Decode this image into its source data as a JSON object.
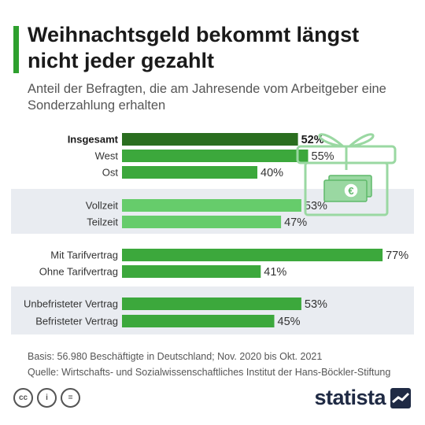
{
  "title": "Weihnachtsgeld bekommt längst nicht jeder gezahlt",
  "subtitle": "Anteil der Befragten, die am Jahresende vom Arbeitgeber eine Sonderzahlung erhalten",
  "colors": {
    "accent": "#2ea02e",
    "dark_green": "#2a6e1f",
    "green": "#3ca83c",
    "light_green": "#66cc6b",
    "band": "#e9ecf1",
    "gift": "#9ad8a2"
  },
  "chart_data": {
    "type": "bar",
    "orientation": "horizontal",
    "unit": "%",
    "categories": [
      "Insgesamt",
      "West",
      "Ost",
      "Vollzeit",
      "Teilzeit",
      "Mit Tarifvertrag",
      "Ohne Tarifvertrag",
      "Unbefristeter Vertrag",
      "Befristeter Vertrag"
    ],
    "values": [
      52,
      55,
      40,
      53,
      47,
      77,
      41,
      53,
      45
    ],
    "value_labels": [
      "52%",
      "55%",
      "40%",
      "53%",
      "47%",
      "77%",
      "41%",
      "53%",
      "45%"
    ],
    "groups": [
      [
        "Insgesamt",
        "West",
        "Ost"
      ],
      [
        "Vollzeit",
        "Teilzeit"
      ],
      [
        "Mit Tarifvertrag",
        "Ohne Tarifvertrag"
      ],
      [
        "Unbefristeter Vertrag",
        "Befristeter Vertrag"
      ]
    ],
    "highlighted": [
      "Insgesamt"
    ],
    "grid": false,
    "legend": false
  },
  "footer": {
    "basis": "Basis: 56.980 Beschäftigte in Deutschland; Nov. 2020 bis Okt. 2021",
    "source": "Quelle: Wirtschafts- und Sozialwissenschaftliches Institut der Hans-Böckler-Stiftung"
  },
  "license_icons": [
    "cc-icon",
    "person-icon",
    "equals-icon"
  ],
  "license_glyphs": [
    "cc",
    "i",
    "="
  ],
  "brand": "statista",
  "gift_symbol": "€"
}
